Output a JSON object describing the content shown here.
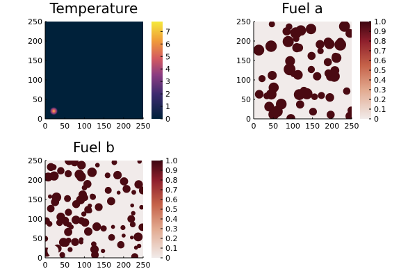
{
  "chart_data": [
    {
      "type": "heatmap",
      "title": "Temperature",
      "xlim": [
        0,
        250
      ],
      "ylim": [
        0,
        250
      ],
      "xticks": [
        "0",
        "50",
        "100",
        "150",
        "200",
        "250"
      ],
      "yticks": [
        "0",
        "50",
        "100",
        "150",
        "200",
        "250"
      ],
      "colormap": "inferno",
      "colorbar": {
        "range": [
          0,
          7.8
        ],
        "ticks": [
          "0",
          "1",
          "2",
          "3",
          "4",
          "5",
          "6",
          "7"
        ]
      },
      "background_value": 0,
      "hotspot": {
        "x": 22,
        "y": 20,
        "radius": 10,
        "peak": 7.8
      },
      "colors": {
        "low": "#00213a",
        "high": "#f5e93c"
      }
    },
    {
      "type": "heatmap",
      "title": "Fuel a",
      "xlim": [
        0,
        250
      ],
      "ylim": [
        0,
        250
      ],
      "xticks": [
        "0",
        "50",
        "100",
        "150",
        "200",
        "250"
      ],
      "yticks": [
        "0",
        "50",
        "100",
        "150",
        "200",
        "250"
      ],
      "colormap": "amp",
      "colorbar": {
        "range": [
          0,
          1
        ],
        "ticks": [
          "0",
          "0.1",
          "0.2",
          "0.3",
          "0.4",
          "0.5",
          "0.6",
          "0.7",
          "0.8",
          "0.9",
          "1.0"
        ]
      },
      "background_value": 0,
      "blobs_value": 1,
      "colors": {
        "low": "#f1ebea",
        "high": "#4a0a12"
      }
    },
    {
      "type": "heatmap",
      "title": "Fuel b",
      "xlim": [
        0,
        250
      ],
      "ylim": [
        0,
        250
      ],
      "xticks": [
        "0",
        "50",
        "100",
        "150",
        "200",
        "250"
      ],
      "yticks": [
        "0",
        "50",
        "100",
        "150",
        "200",
        "250"
      ],
      "colormap": "amp",
      "colorbar": {
        "range": [
          0,
          1
        ],
        "ticks": [
          "0",
          "0.1",
          "0.2",
          "0.3",
          "0.4",
          "0.5",
          "0.6",
          "0.7",
          "0.8",
          "0.9",
          "1.0"
        ]
      },
      "background_value": 0,
      "blobs_value": 1,
      "colors": {
        "low": "#f1ebea",
        "high": "#4a0a12"
      }
    }
  ]
}
